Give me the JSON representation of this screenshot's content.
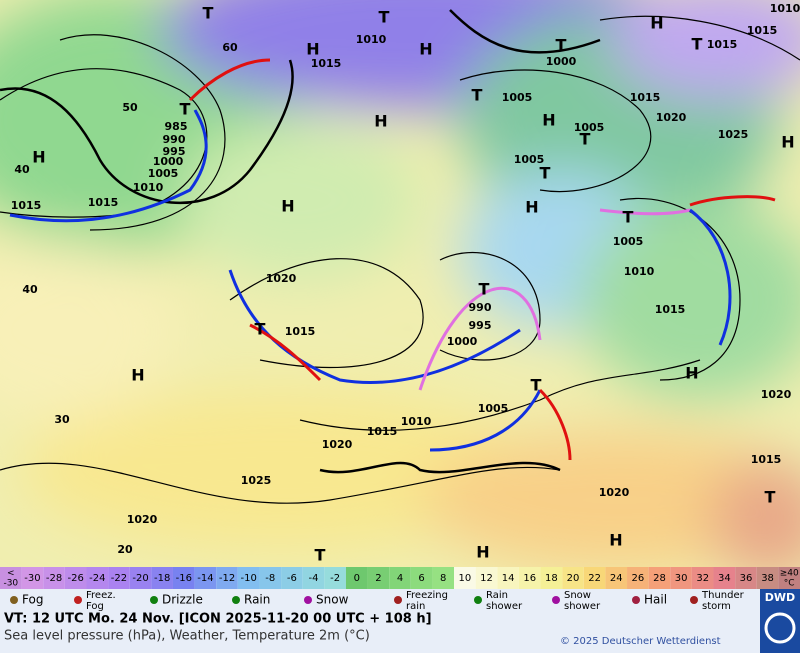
{
  "map": {
    "labels": [
      "T",
      "T",
      "1010",
      "H",
      "H",
      "1015",
      "T",
      "1000",
      "H",
      "T",
      "1015",
      "1015",
      "1010",
      "60",
      "50",
      "40",
      "40",
      "30",
      "20",
      "T",
      "985",
      "990",
      "995",
      "1000",
      "1005",
      "1010",
      "1015",
      "1015",
      "H",
      "H",
      "H",
      "T",
      "1005",
      "H",
      "1005",
      "1015",
      "1020",
      "1025",
      "H",
      "T",
      "1005",
      "T",
      "H",
      "T",
      "1005",
      "1010",
      "1015",
      "H",
      "1020",
      "1015",
      "T",
      "1020",
      "H",
      "H",
      "T",
      "1020",
      "T",
      "1015",
      "T",
      "990",
      "995",
      "1000",
      "H",
      "1005",
      "1010",
      "1015",
      "1020",
      "1025",
      "1020",
      "T"
    ]
  },
  "scale": {
    "first": [
      "<",
      "-30"
    ],
    "values": [
      -30,
      -28,
      -26,
      -24,
      -22,
      -20,
      -18,
      -16,
      -14,
      -12,
      -10,
      -8,
      -6,
      -4,
      -2,
      0,
      2,
      4,
      6,
      8,
      10,
      12,
      14,
      16,
      18,
      20,
      22,
      24,
      26,
      28,
      30,
      32,
      34,
      36,
      38
    ],
    "last": [
      "≥40",
      "°C"
    ]
  },
  "legend": [
    [
      "Fog"
    ],
    [
      "Freez.",
      "Fog"
    ],
    [
      "Drizzle"
    ],
    [
      "Rain"
    ],
    [
      "Snow"
    ],
    [
      "Freezing",
      "rain"
    ],
    [
      "Rain",
      "shower"
    ],
    [
      "Snow",
      "shower"
    ],
    [
      "Hail"
    ],
    [
      "Thunder",
      "storm"
    ]
  ],
  "footer": {
    "valid_time": "VT: 12 UTC Mo.  24 Nov. [ICON 2025-11-20  00 UTC + 108 h]",
    "subtitle": "Sea level pressure (hPa), Weather, Temperature 2m (°C)",
    "copyright": "© 2025 Deutscher Wetterdienst",
    "logo": "DWD"
  }
}
